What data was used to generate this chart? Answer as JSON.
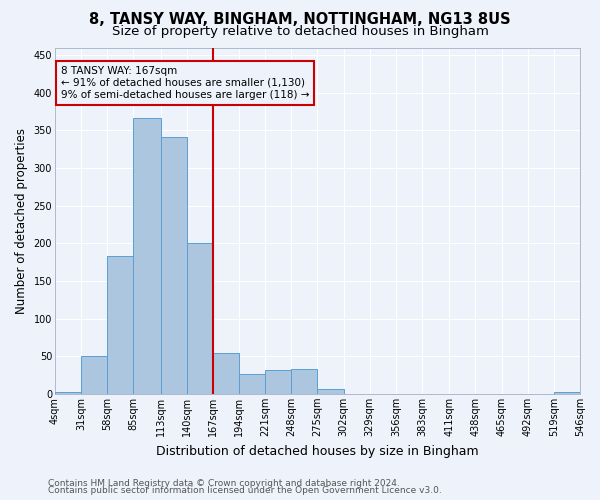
{
  "title": "8, TANSY WAY, BINGHAM, NOTTINGHAM, NG13 8US",
  "subtitle": "Size of property relative to detached houses in Bingham",
  "xlabel": "Distribution of detached houses by size in Bingham",
  "ylabel": "Number of detached properties",
  "bin_edges": [
    4,
    31,
    58,
    85,
    113,
    140,
    167,
    194,
    221,
    248,
    275,
    302,
    329,
    356,
    383,
    411,
    438,
    465,
    492,
    519,
    546
  ],
  "bar_heights": [
    3,
    50,
    183,
    367,
    341,
    200,
    54,
    26,
    32,
    33,
    6,
    0,
    0,
    0,
    0,
    0,
    0,
    0,
    0,
    3
  ],
  "bar_color": "#adc6e0",
  "bar_edgecolor": "#5a9fd4",
  "property_size": 167,
  "annotation_line1": "8 TANSY WAY: 167sqm",
  "annotation_line2": "← 91% of detached houses are smaller (1,130)",
  "annotation_line3": "9% of semi-detached houses are larger (118) →",
  "annotation_box_color": "#cc0000",
  "vline_color": "#cc0000",
  "ylim": [
    0,
    460
  ],
  "yticks": [
    0,
    50,
    100,
    150,
    200,
    250,
    300,
    350,
    400,
    450
  ],
  "tick_labels": [
    "4sqm",
    "31sqm",
    "58sqm",
    "85sqm",
    "113sqm",
    "140sqm",
    "167sqm",
    "194sqm",
    "221sqm",
    "248sqm",
    "275sqm",
    "302sqm",
    "329sqm",
    "356sqm",
    "383sqm",
    "411sqm",
    "438sqm",
    "465sqm",
    "492sqm",
    "519sqm",
    "546sqm"
  ],
  "footer_line1": "Contains HM Land Registry data © Crown copyright and database right 2024.",
  "footer_line2": "Contains public sector information licensed under the Open Government Licence v3.0.",
  "background_color": "#eef2fb",
  "grid_color": "#ffffff",
  "title_fontsize": 10.5,
  "subtitle_fontsize": 9.5,
  "ylabel_fontsize": 8.5,
  "xlabel_fontsize": 9,
  "tick_fontsize": 7,
  "annot_fontsize": 7.5,
  "footer_fontsize": 6.5
}
